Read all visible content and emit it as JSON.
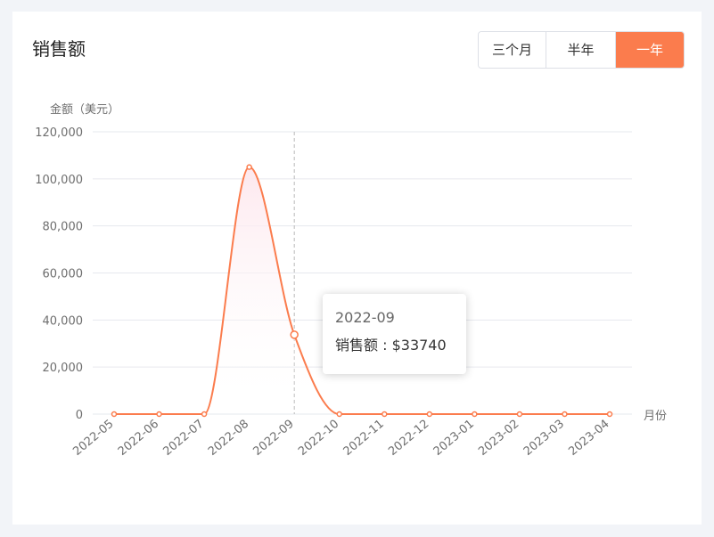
{
  "card": {
    "title": "销售额"
  },
  "range_buttons": [
    {
      "label": "三个月",
      "active": false
    },
    {
      "label": "半年",
      "active": false
    },
    {
      "label": "一年",
      "active": true
    }
  ],
  "colors": {
    "accent": "#fb7c4d",
    "area_top": "#fde8ee",
    "grid": "#e6e8ee",
    "axis_text": "#6e6e6e"
  },
  "tooltip": {
    "title": "2022-09",
    "series_label": "销售额",
    "value_text": "$33740"
  },
  "chart_data": {
    "type": "line",
    "smooth": true,
    "area_fill": true,
    "ylabel": "金额（美元）",
    "xlabel": "月份",
    "ylim": [
      0,
      120000
    ],
    "yticks": [
      0,
      20000,
      40000,
      60000,
      80000,
      100000,
      120000
    ],
    "ytick_labels": [
      "0",
      "20,000",
      "40,000",
      "60,000",
      "80,000",
      "100,000",
      "120,000"
    ],
    "grid": true,
    "legend": "none",
    "categories": [
      "2022-05",
      "2022-06",
      "2022-07",
      "2022-08",
      "2022-09",
      "2022-10",
      "2022-11",
      "2022-12",
      "2023-01",
      "2023-02",
      "2023-03",
      "2023-04"
    ],
    "series": [
      {
        "name": "销售额",
        "values": [
          0,
          0,
          0,
          105000,
          33740,
          0,
          0,
          0,
          0,
          0,
          0,
          0
        ]
      }
    ],
    "highlight_category": "2022-09"
  }
}
